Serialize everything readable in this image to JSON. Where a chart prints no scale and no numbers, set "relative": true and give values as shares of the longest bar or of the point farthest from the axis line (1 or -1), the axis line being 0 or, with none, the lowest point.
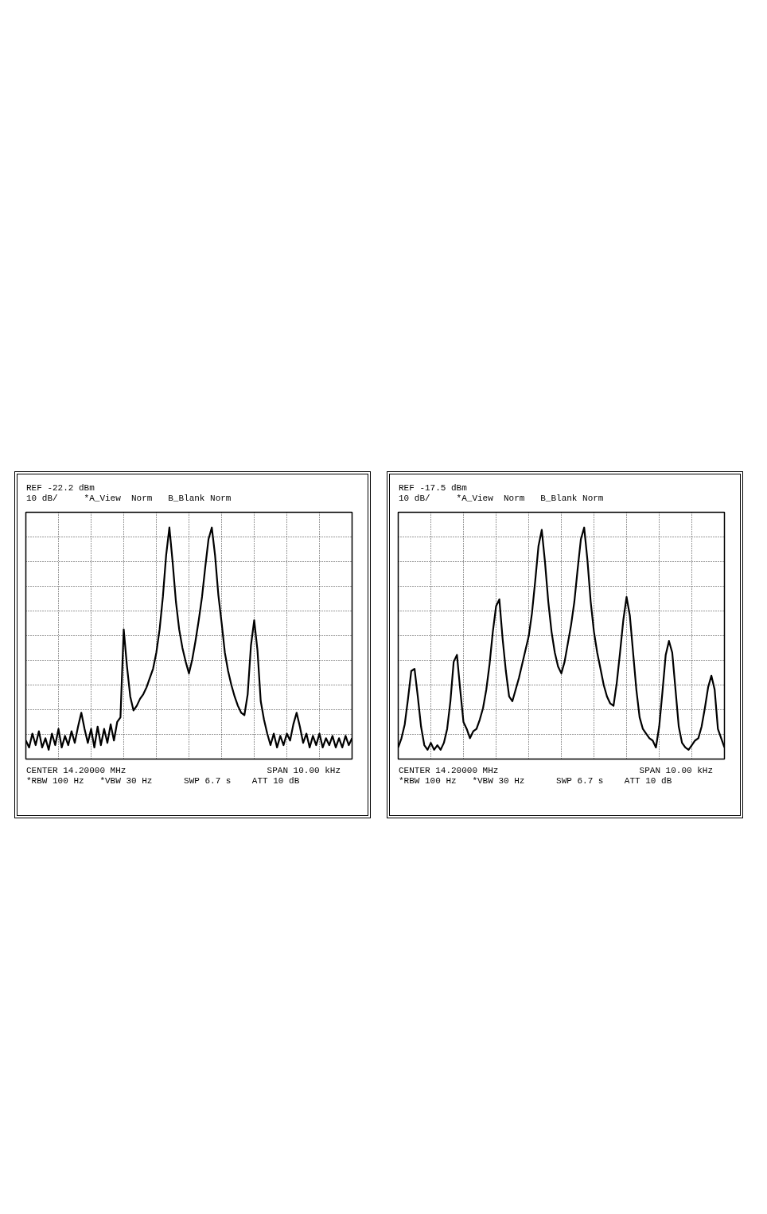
{
  "chart_data": [
    {
      "type": "line",
      "relative": true,
      "grid": true,
      "tick_labels": false,
      "line_style": "solid",
      "annotations": [
        "REF -22.2 dBm",
        "10 dB/",
        "*A_View  Norm",
        "B_Blank Norm",
        "CENTER 14.20000 MHz",
        "SPAN 10.00 kHz",
        "*RBW 100 Hz",
        "*VBW 30 Hz",
        "SWP 6.7 s",
        "ATT 10 dB"
      ],
      "categories": [
        null,
        null,
        null,
        null,
        null,
        null,
        null,
        null,
        null,
        null,
        null,
        null,
        null,
        null,
        null,
        null,
        null,
        null,
        null,
        null,
        null,
        null,
        null,
        null,
        null,
        null,
        null,
        null,
        null,
        null,
        null,
        null,
        null,
        null,
        null,
        null,
        null,
        null,
        null,
        null,
        null,
        null,
        null,
        null,
        null,
        null,
        null,
        null,
        null,
        null,
        null,
        null,
        null,
        null,
        null,
        null,
        null,
        null,
        null,
        null,
        null,
        null,
        null,
        null,
        null,
        null,
        null,
        null,
        null,
        null,
        null,
        null,
        null,
        null,
        null,
        null,
        null,
        null,
        null,
        null,
        null,
        null,
        null,
        null,
        null,
        null,
        null,
        null,
        null,
        null,
        null,
        null,
        null,
        null,
        null,
        null,
        null,
        null,
        null,
        null,
        null
      ],
      "series": [
        {
          "color": "#000000",
          "values": [
            0.08,
            0.05,
            0.11,
            0.06,
            0.12,
            0.05,
            0.09,
            0.04,
            0.11,
            0.06,
            0.13,
            0.05,
            0.1,
            0.06,
            0.12,
            0.07,
            0.14,
            0.2,
            0.13,
            0.07,
            0.13,
            0.05,
            0.14,
            0.06,
            0.13,
            0.07,
            0.15,
            0.08,
            0.16,
            0.18,
            0.56,
            0.4,
            0.27,
            0.21,
            0.23,
            0.26,
            0.28,
            0.31,
            0.35,
            0.39,
            0.46,
            0.56,
            0.7,
            0.88,
            1.0,
            0.85,
            0.68,
            0.56,
            0.48,
            0.42,
            0.37,
            0.43,
            0.51,
            0.6,
            0.7,
            0.83,
            0.95,
            1.0,
            0.88,
            0.71,
            0.59,
            0.46,
            0.38,
            0.32,
            0.27,
            0.23,
            0.2,
            0.19,
            0.28,
            0.49,
            0.6,
            0.47,
            0.25,
            0.17,
            0.11,
            0.06,
            0.11,
            0.05,
            0.1,
            0.06,
            0.11,
            0.08,
            0.15,
            0.2,
            0.14,
            0.07,
            0.11,
            0.05,
            0.1,
            0.06,
            0.11,
            0.05,
            0.09,
            0.06,
            0.1,
            0.05,
            0.09,
            0.05,
            0.1,
            0.06,
            0.09
          ]
        }
      ]
    },
    {
      "type": "line",
      "relative": true,
      "grid": true,
      "tick_labels": false,
      "line_style": "solid",
      "annotations": [
        "REF -17.5 dBm",
        "10 dB/",
        "*A_View  Norm",
        "B_Blank Norm",
        "CENTER 14.20000 MHz",
        "SPAN 10.00 kHz",
        "*RBW 100 Hz",
        "*VBW 30 Hz",
        "SWP 6.7 s",
        "ATT 10 dB"
      ],
      "categories": [
        null,
        null,
        null,
        null,
        null,
        null,
        null,
        null,
        null,
        null,
        null,
        null,
        null,
        null,
        null,
        null,
        null,
        null,
        null,
        null,
        null,
        null,
        null,
        null,
        null,
        null,
        null,
        null,
        null,
        null,
        null,
        null,
        null,
        null,
        null,
        null,
        null,
        null,
        null,
        null,
        null,
        null,
        null,
        null,
        null,
        null,
        null,
        null,
        null,
        null,
        null,
        null,
        null,
        null,
        null,
        null,
        null,
        null,
        null,
        null,
        null,
        null,
        null,
        null,
        null,
        null,
        null,
        null,
        null,
        null,
        null,
        null,
        null,
        null,
        null,
        null,
        null,
        null,
        null,
        null,
        null,
        null,
        null,
        null,
        null,
        null,
        null,
        null,
        null,
        null,
        null,
        null,
        null,
        null,
        null,
        null,
        null,
        null,
        null,
        null,
        null
      ],
      "series": [
        {
          "color": "#000000",
          "values": [
            0.05,
            0.09,
            0.15,
            0.26,
            0.38,
            0.39,
            0.27,
            0.14,
            0.06,
            0.04,
            0.07,
            0.04,
            0.06,
            0.04,
            0.07,
            0.13,
            0.25,
            0.42,
            0.45,
            0.3,
            0.16,
            0.13,
            0.09,
            0.12,
            0.13,
            0.17,
            0.22,
            0.3,
            0.41,
            0.55,
            0.66,
            0.69,
            0.52,
            0.38,
            0.27,
            0.25,
            0.3,
            0.35,
            0.41,
            0.47,
            0.53,
            0.63,
            0.77,
            0.92,
            0.99,
            0.85,
            0.68,
            0.55,
            0.46,
            0.4,
            0.37,
            0.42,
            0.5,
            0.58,
            0.68,
            0.82,
            0.95,
            1.0,
            0.86,
            0.68,
            0.55,
            0.46,
            0.39,
            0.32,
            0.27,
            0.24,
            0.23,
            0.33,
            0.46,
            0.6,
            0.7,
            0.62,
            0.46,
            0.3,
            0.18,
            0.13,
            0.11,
            0.09,
            0.08,
            0.05,
            0.14,
            0.29,
            0.45,
            0.51,
            0.46,
            0.3,
            0.14,
            0.07,
            0.05,
            0.04,
            0.06,
            0.08,
            0.09,
            0.14,
            0.22,
            0.31,
            0.36,
            0.3,
            0.13,
            0.09,
            0.05
          ]
        }
      ]
    }
  ]
}
